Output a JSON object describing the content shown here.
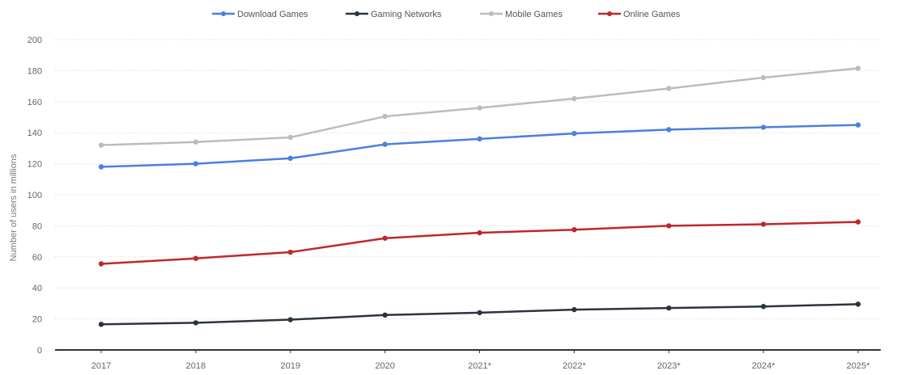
{
  "chart_data": {
    "type": "line",
    "title": "",
    "xlabel": "",
    "ylabel": "Number of users in millions",
    "categories": [
      "2017",
      "2018",
      "2019",
      "2020",
      "2021*",
      "2022*",
      "2023*",
      "2024*",
      "2025*"
    ],
    "ylim": [
      0,
      200
    ],
    "yticks": [
      0,
      20,
      40,
      60,
      80,
      100,
      120,
      140,
      160,
      180,
      200
    ],
    "grid": true,
    "legend_position": "top",
    "series": [
      {
        "name": "Download Games",
        "color": "#4a80e0",
        "values": [
          118,
          120,
          123.5,
          132.5,
          136,
          139.5,
          142,
          143.5,
          145
        ]
      },
      {
        "name": "Gaming Networks",
        "color": "#2b3440",
        "values": [
          16.5,
          17.5,
          19.5,
          22.5,
          24,
          26,
          27,
          28,
          29.5
        ]
      },
      {
        "name": "Mobile Games",
        "color": "#bcbcbc",
        "values": [
          132,
          134,
          137,
          150.5,
          156,
          162,
          168.5,
          175.5,
          181.5
        ]
      },
      {
        "name": "Online Games",
        "color": "#c0272d",
        "values": [
          55.5,
          59,
          63,
          72,
          75.5,
          77.5,
          80,
          81,
          82.5
        ]
      }
    ]
  }
}
